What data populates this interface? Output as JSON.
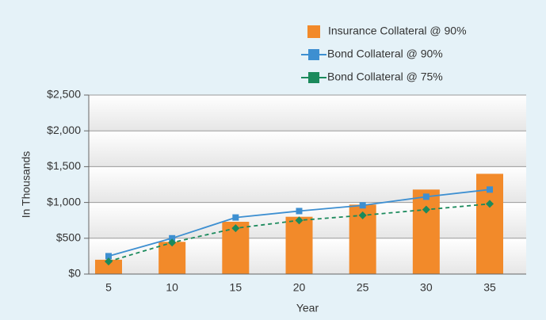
{
  "chart_data": {
    "type": "bar_line",
    "x_label": "Year",
    "y_label": "In Thousands",
    "categories": [
      "5",
      "10",
      "15",
      "20",
      "25",
      "30",
      "35"
    ],
    "series": [
      {
        "name": "Insurance Collateral @ 90%",
        "type": "bar",
        "color": "#f28a2a",
        "values": [
          200,
          450,
          730,
          800,
          970,
          1180,
          1400
        ]
      },
      {
        "name": "Bond Collateral @ 90%",
        "type": "line",
        "marker": "square",
        "color": "#3d8fd1",
        "values": [
          250,
          500,
          790,
          880,
          960,
          1080,
          1180
        ]
      },
      {
        "name": "Bond Collateral @ 75%",
        "type": "line",
        "marker": "diamond",
        "dashed": true,
        "color": "#1b8a5c",
        "values": [
          175,
          440,
          640,
          750,
          820,
          900,
          980
        ]
      }
    ],
    "ylim": [
      0,
      2500
    ],
    "yticks": [
      {
        "value": 0,
        "label": "$0"
      },
      {
        "value": 500,
        "label": "$500"
      },
      {
        "value": 1000,
        "label": "$1,000"
      },
      {
        "value": 1500,
        "label": "$1,500"
      },
      {
        "value": 2000,
        "label": "$2,000"
      },
      {
        "value": 2500,
        "label": "$2,500"
      }
    ],
    "grid": true,
    "legend": "top-right"
  }
}
